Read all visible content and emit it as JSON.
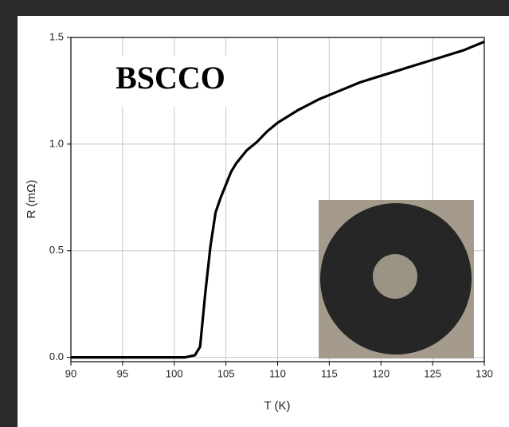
{
  "chart_data": {
    "type": "line",
    "annotation": "BSCCO",
    "xlabel": "T (K)",
    "ylabel": "R (mΩ)",
    "x": [
      90,
      92,
      94,
      96,
      98,
      100,
      101,
      102,
      102.5,
      103,
      103.5,
      104,
      104.5,
      105,
      105.5,
      106,
      107,
      108,
      109,
      110,
      112,
      114,
      116,
      118,
      120,
      122,
      124,
      126,
      128,
      130
    ],
    "values": [
      0.0,
      0.0,
      0.0,
      0.0,
      0.0,
      0.0,
      0.0,
      0.01,
      0.05,
      0.3,
      0.52,
      0.68,
      0.75,
      0.81,
      0.87,
      0.91,
      0.97,
      1.01,
      1.06,
      1.1,
      1.16,
      1.21,
      1.25,
      1.29,
      1.32,
      1.35,
      1.38,
      1.41,
      1.44,
      1.48
    ],
    "color": "#000000",
    "xlim": [
      90,
      130
    ],
    "ylim": [
      -0.02,
      1.5
    ],
    "xticks": [
      90,
      95,
      100,
      105,
      110,
      115,
      120,
      125,
      130
    ],
    "yticks": [
      {
        "value": 0,
        "label": "0.0"
      },
      0.5,
      {
        "value": 1,
        "label": "1.0"
      },
      {
        "value": 1.5,
        "label": "1.5"
      }
    ],
    "grid": true
  }
}
